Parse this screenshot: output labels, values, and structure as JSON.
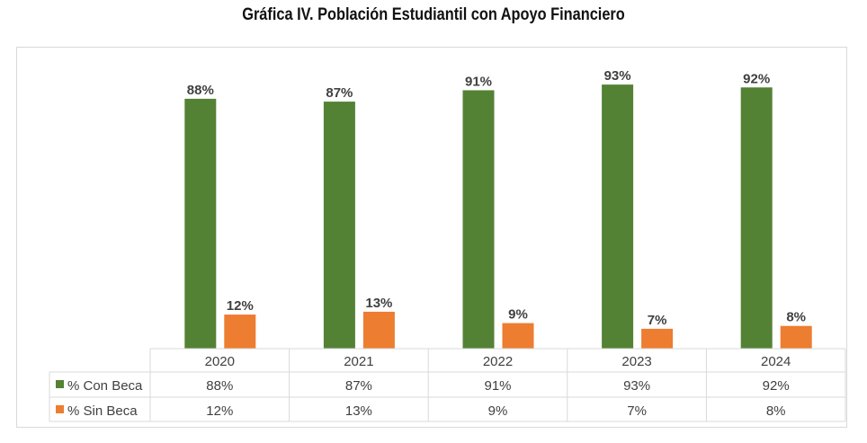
{
  "chart_data": {
    "type": "bar",
    "title": "Gráfica IV. Población Estudiantil con Apoyo Financiero",
    "categories": [
      "2020",
      "2021",
      "2022",
      "2023",
      "2024"
    ],
    "series": [
      {
        "name": "% Con Beca",
        "values": [
          88,
          87,
          91,
          93,
          92
        ],
        "labels": [
          "88%",
          "87%",
          "91%",
          "93%",
          "92%"
        ],
        "color": "#548235"
      },
      {
        "name": "% Sin Beca",
        "values": [
          12,
          13,
          9,
          7,
          8
        ],
        "labels": [
          "12%",
          "13%",
          "9%",
          "7%",
          "8%"
        ],
        "color": "#ED7D31"
      }
    ],
    "ylim": [
      0,
      100
    ],
    "grid": false,
    "legend": "data-table"
  }
}
